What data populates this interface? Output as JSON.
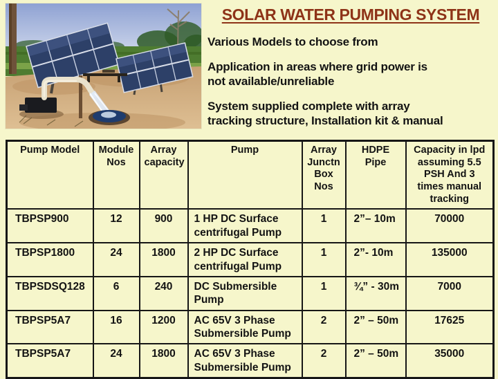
{
  "title": "SOLAR WATER PUMPING SYSTEM",
  "bullets": [
    "Various Models to choose from",
    "Application in areas where grid power is\nnot available/unreliable",
    "System supplied complete with array\ntracking structure, Installation kit & manual"
  ],
  "photo": {
    "description": "solar-panel-arrays-with-water-pump-discharging-into-basin"
  },
  "table": {
    "headers": [
      "Pump Model",
      "Module Nos",
      "Array capacity",
      "Pump",
      "Array Junctn Box Nos",
      "HDPE Pipe",
      "Capacity in lpd assuming 5.5 PSH And 3 times manual tracking"
    ],
    "rows": [
      [
        "TBPSP900",
        "12",
        "900",
        "1 HP DC Surface centrifugal Pump",
        "1",
        "2”– 10m",
        "70000"
      ],
      [
        "TBPSP1800",
        "24",
        "1800",
        "2 HP DC Surface centrifugal Pump",
        "1",
        "2”- 10m",
        "135000"
      ],
      [
        "TBPSDSQ128",
        "6",
        "240",
        "DC Submersible Pump",
        "1",
        "¾” - 30m",
        "7000"
      ],
      [
        "TBPSP5A7",
        "16",
        "1200",
        "AC 65V 3 Phase Submersible Pump",
        "2",
        "2” – 50m",
        "17625"
      ],
      [
        "TBPSP5A7",
        "24",
        "1800",
        "AC 65V 3 Phase Submersible Pump",
        "2",
        "2” – 50m",
        "35000"
      ]
    ]
  },
  "colors": {
    "background": "#f6f6cb",
    "title_text": "#8e3318",
    "body_text": "#131313",
    "table_border": "#161616",
    "photo_sky": "#93a5d6",
    "photo_field": "#4e7c31",
    "photo_sand": "#cfa87a",
    "photo_panel": "#2d4068"
  }
}
